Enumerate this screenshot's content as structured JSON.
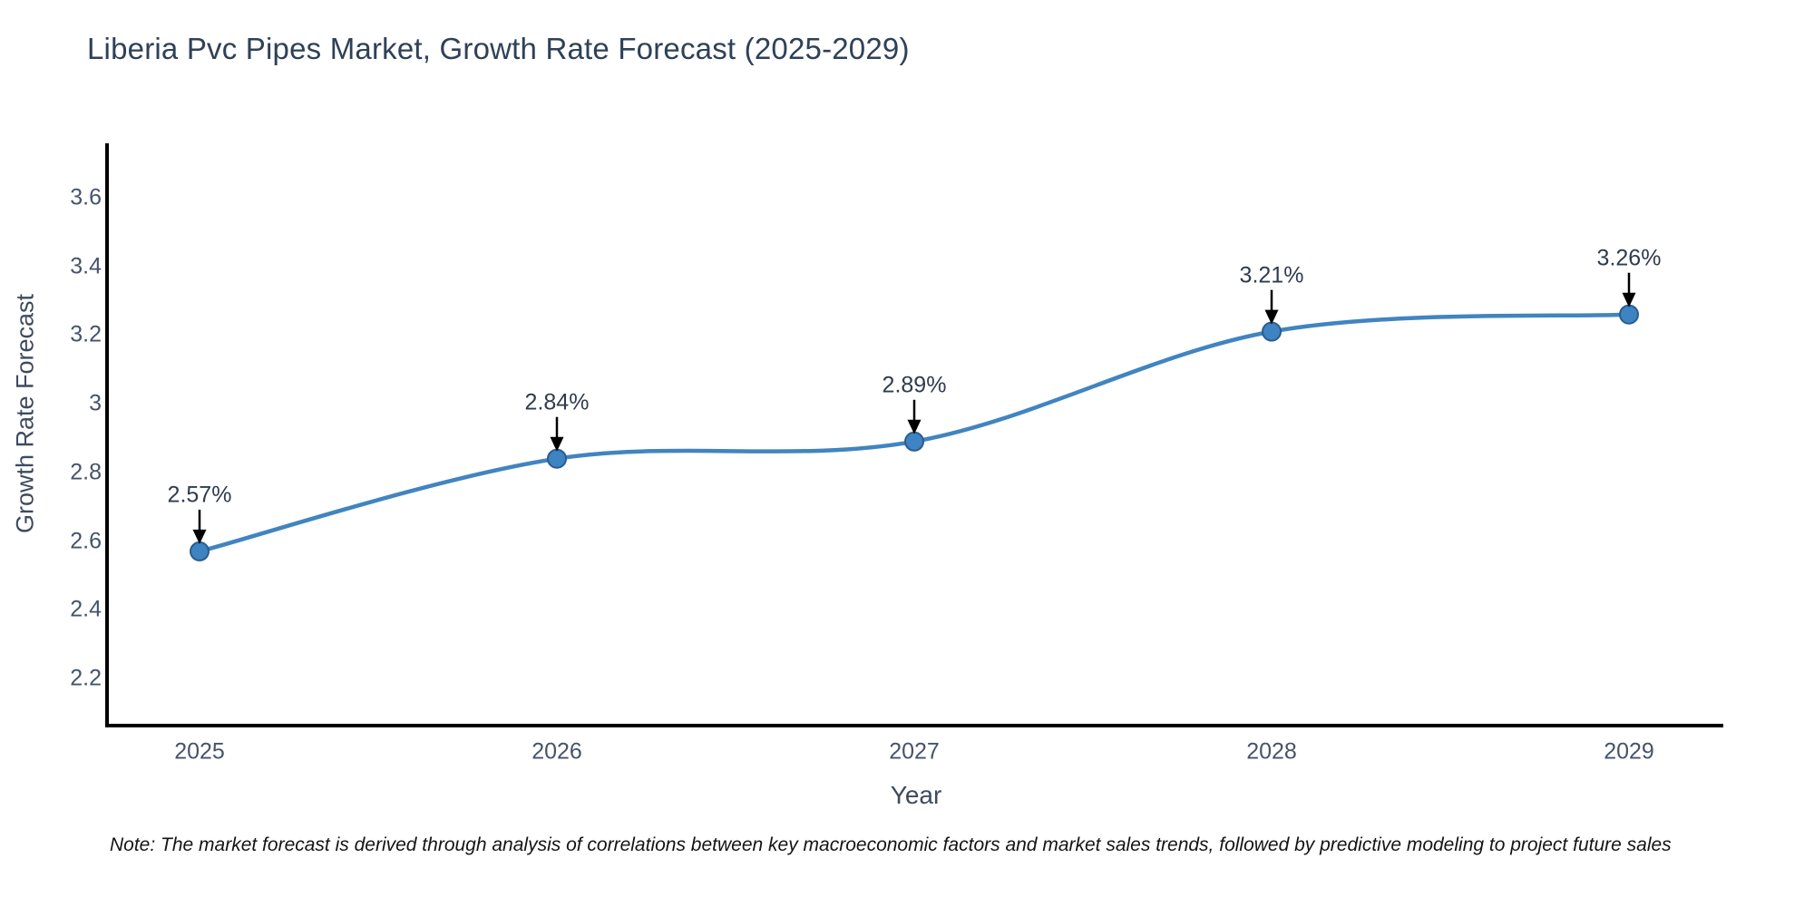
{
  "title": "Liberia Pvc Pipes Market, Growth Rate Forecast (2025-2029)",
  "note": "Note: The market forecast is derived through analysis of correlations between key macroeconomic factors and market sales trends, followed by predictive modeling to project future sales",
  "chart_data": {
    "type": "line",
    "title": "Liberia Pvc Pipes Market, Growth Rate Forecast (2025-2029)",
    "xlabel": "Year",
    "ylabel": "Growth Rate Forecast",
    "line_shape": "spline",
    "grid": false,
    "legend": "none",
    "x": [
      2025,
      2026,
      2027,
      2028,
      2029
    ],
    "series": [
      {
        "name": "Growth Rate Forecast",
        "values": [
          2.57,
          2.84,
          2.89,
          3.21,
          3.26
        ]
      }
    ],
    "point_labels": [
      "2.57%",
      "2.84%",
      "2.89%",
      "3.21%",
      "3.26%"
    ],
    "x_tick_labels": [
      "2025",
      "2026",
      "2027",
      "2028",
      "2029"
    ],
    "y_ticks": [
      {
        "value": 3.6,
        "label": "3.6"
      },
      {
        "value": 3.4,
        "label": "3.4"
      },
      {
        "value": 3.2,
        "label": "3.2"
      },
      {
        "value": 3.0,
        "label": "3"
      },
      {
        "value": 2.8,
        "label": "2.8"
      },
      {
        "value": 2.6,
        "label": "2.6"
      },
      {
        "value": 2.4,
        "label": "2.4"
      },
      {
        "value": 2.2,
        "label": "2.2"
      }
    ],
    "ylim": [
      2.06,
      3.75
    ],
    "colors": {
      "line": "#4184c0",
      "marker_fill": "#3e83c2",
      "marker_edge": "#2b5d8c",
      "arrow": "#000000",
      "axis_line": "#000000",
      "title_text": "#2e4157",
      "tick_text": "#46536b",
      "axis_title_text": "#3e4a5e",
      "note_text": "#141414"
    }
  }
}
